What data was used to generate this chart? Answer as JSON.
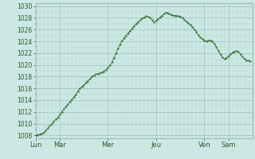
{
  "background_color": "#cce8e4",
  "plot_bg_color": "#cce8e4",
  "line_color": "#2d6e2d",
  "marker_color": "#2d6e2d",
  "ylim": [
    1007.5,
    1030.5
  ],
  "yticks": [
    1008,
    1010,
    1012,
    1014,
    1016,
    1018,
    1020,
    1022,
    1024,
    1026,
    1028,
    1030
  ],
  "ylabel_fontsize": 5.5,
  "xlabel_fontsize": 6.0,
  "grid_minor_color": "#b8d4d0",
  "grid_major_color": "#9abcb8",
  "tick_color": "#2d5a2d",
  "day_labels": [
    "Lun",
    "Mar",
    "Mer",
    "Jeu",
    "Ven",
    "Sam"
  ],
  "day_positions": [
    0,
    24,
    72,
    120,
    168,
    192
  ],
  "xlim": [
    0,
    216
  ],
  "x_values": [
    0,
    2,
    4,
    6,
    8,
    10,
    12,
    14,
    16,
    18,
    20,
    22,
    24,
    26,
    28,
    30,
    32,
    34,
    36,
    38,
    40,
    42,
    44,
    46,
    48,
    50,
    52,
    54,
    56,
    58,
    60,
    62,
    64,
    66,
    68,
    70,
    72,
    74,
    76,
    78,
    80,
    82,
    84,
    86,
    88,
    90,
    92,
    94,
    96,
    98,
    100,
    102,
    104,
    106,
    108,
    110,
    112,
    114,
    116,
    118,
    120,
    122,
    124,
    126,
    128,
    130,
    132,
    134,
    136,
    138,
    140,
    142,
    144,
    146,
    148,
    150,
    152,
    154,
    156,
    158,
    160,
    162,
    164,
    166,
    168,
    170,
    172,
    174,
    176,
    178,
    180,
    182,
    184,
    186,
    188,
    190,
    192,
    194,
    196,
    198,
    200,
    202,
    204,
    206,
    208,
    210,
    212,
    214
  ],
  "y_values": [
    1008.0,
    1008.1,
    1008.2,
    1008.3,
    1008.5,
    1008.8,
    1009.2,
    1009.6,
    1010.0,
    1010.4,
    1010.7,
    1011.0,
    1011.5,
    1012.0,
    1012.5,
    1012.9,
    1013.3,
    1013.7,
    1014.1,
    1014.5,
    1015.0,
    1015.5,
    1016.0,
    1016.3,
    1016.6,
    1017.0,
    1017.3,
    1017.6,
    1018.0,
    1018.2,
    1018.4,
    1018.5,
    1018.6,
    1018.7,
    1018.9,
    1019.2,
    1019.5,
    1019.9,
    1020.5,
    1021.2,
    1022.0,
    1022.8,
    1023.5,
    1024.1,
    1024.6,
    1025.0,
    1025.4,
    1025.8,
    1026.2,
    1026.6,
    1027.0,
    1027.3,
    1027.6,
    1027.9,
    1028.1,
    1028.3,
    1028.2,
    1028.0,
    1027.6,
    1027.3,
    1027.5,
    1027.8,
    1028.1,
    1028.4,
    1028.7,
    1028.9,
    1028.8,
    1028.6,
    1028.5,
    1028.4,
    1028.4,
    1028.3,
    1028.2,
    1028.0,
    1027.7,
    1027.4,
    1027.1,
    1026.8,
    1026.5,
    1026.1,
    1025.6,
    1025.1,
    1024.7,
    1024.4,
    1024.2,
    1024.0,
    1024.1,
    1024.2,
    1024.0,
    1023.6,
    1023.0,
    1022.4,
    1021.8,
    1021.3,
    1021.0,
    1021.2,
    1021.5,
    1021.8,
    1022.1,
    1022.3,
    1022.4,
    1022.2,
    1021.8,
    1021.4,
    1021.0,
    1020.8,
    1020.7,
    1020.6
  ]
}
